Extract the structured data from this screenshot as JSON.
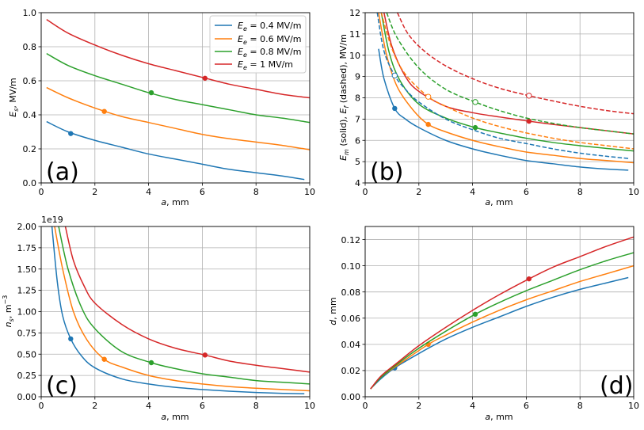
{
  "colors": {
    "blue": "#1f77b4",
    "orange": "#ff7f0e",
    "green": "#2ca02c",
    "red": "#d62728"
  },
  "chart_data": [
    {
      "type": "line",
      "panel_label": "(a)",
      "xlabel": "a, mm",
      "ylabel": "E_s, MV/m",
      "xlim": [
        0,
        10
      ],
      "ylim": [
        0,
        1.0
      ],
      "xticks": [
        "0",
        "2",
        "4",
        "6",
        "8",
        "10"
      ],
      "yticks": [
        "0.0",
        "0.2",
        "0.4",
        "0.6",
        "0.8",
        "1.0"
      ],
      "grid": true,
      "legend_position": "top-right",
      "legend": [
        "E_e = 0.4 MV/m",
        "E_e = 0.6 MV/m",
        "E_e = 0.8 MV/m",
        "E_e = 1 MV/m"
      ],
      "series": [
        {
          "name": "E_e = 0.4 MV/m",
          "color": "blue",
          "x": [
            0.2,
            1,
            2,
            3,
            4,
            5,
            6,
            7,
            8,
            9,
            9.8
          ],
          "y": [
            0.36,
            0.3,
            0.25,
            0.21,
            0.17,
            0.14,
            0.11,
            0.08,
            0.06,
            0.04,
            0.02
          ],
          "marker": [
            1.1,
            0.29
          ]
        },
        {
          "name": "E_e = 0.6 MV/m",
          "color": "orange",
          "x": [
            0.2,
            1,
            2,
            3,
            4,
            5,
            6,
            7,
            8,
            9,
            10
          ],
          "y": [
            0.56,
            0.5,
            0.44,
            0.39,
            0.355,
            0.32,
            0.285,
            0.26,
            0.24,
            0.22,
            0.195
          ],
          "marker": [
            2.35,
            0.42
          ]
        },
        {
          "name": "E_e = 0.8 MV/m",
          "color": "green",
          "x": [
            0.2,
            1,
            2,
            3,
            4,
            5,
            6,
            7,
            8,
            9,
            10
          ],
          "y": [
            0.76,
            0.69,
            0.63,
            0.58,
            0.53,
            0.49,
            0.46,
            0.43,
            0.4,
            0.38,
            0.355
          ],
          "marker": [
            4.1,
            0.53
          ]
        },
        {
          "name": "E_e = 1 MV/m",
          "color": "red",
          "x": [
            0.2,
            1,
            2,
            3,
            4,
            5,
            6,
            7,
            8,
            9,
            10
          ],
          "y": [
            0.96,
            0.88,
            0.81,
            0.75,
            0.7,
            0.66,
            0.62,
            0.58,
            0.55,
            0.52,
            0.5
          ],
          "marker": [
            6.1,
            0.615
          ]
        }
      ]
    },
    {
      "type": "line",
      "panel_label": "(b)",
      "xlabel": "a, mm",
      "ylabel": "E_m (solid), E_f (dashed), MV/m",
      "xlim": [
        0,
        10
      ],
      "ylim": [
        4,
        12
      ],
      "xticks": [
        "0",
        "2",
        "4",
        "6",
        "8",
        "10"
      ],
      "yticks": [
        "4",
        "5",
        "6",
        "7",
        "8",
        "9",
        "10",
        "11",
        "12"
      ],
      "grid": true,
      "series": [
        {
          "name": "E_m, E_e = 0.4 MV/m",
          "color": "blue",
          "style": "solid",
          "x": [
            0.5,
            0.7,
            1.1,
            1.5,
            2,
            3,
            4,
            5,
            6,
            7,
            8,
            9,
            9.8
          ],
          "y": [
            10.3,
            8.9,
            7.5,
            7.0,
            6.6,
            6.0,
            5.6,
            5.3,
            5.05,
            4.9,
            4.75,
            4.65,
            4.6
          ],
          "marker": [
            1.1,
            7.5
          ]
        },
        {
          "name": "E_m, E_e = 0.6 MV/m",
          "color": "orange",
          "style": "solid",
          "x": [
            0.5,
            0.8,
            1.2,
            1.8,
            2.35,
            3,
            4,
            5,
            6,
            7,
            8,
            9,
            10
          ],
          "y": [
            12,
            10.0,
            8.5,
            7.4,
            6.75,
            6.4,
            6.0,
            5.7,
            5.45,
            5.3,
            5.15,
            5.05,
            4.95
          ],
          "marker": [
            2.35,
            6.75
          ]
        },
        {
          "name": "E_m, E_e = 0.8 MV/m",
          "color": "green",
          "style": "solid",
          "x": [
            0.6,
            0.9,
            1.3,
            2,
            3,
            4.1,
            5,
            6,
            7,
            8,
            9,
            10
          ],
          "y": [
            12,
            10.1,
            8.8,
            7.7,
            7.05,
            6.6,
            6.35,
            6.1,
            5.9,
            5.75,
            5.62,
            5.5
          ],
          "marker": [
            4.1,
            6.6
          ]
        },
        {
          "name": "E_m, E_e = 1 MV/m",
          "color": "red",
          "style": "solid",
          "x": [
            0.7,
            1.0,
            1.5,
            2,
            3,
            4,
            5,
            6.1,
            7,
            8,
            9,
            10
          ],
          "y": [
            12,
            10.4,
            9.0,
            8.3,
            7.6,
            7.3,
            7.1,
            6.9,
            6.75,
            6.6,
            6.45,
            6.3
          ],
          "marker": [
            6.1,
            6.9
          ]
        },
        {
          "name": "E_f, E_e = 0.4 MV/m",
          "color": "blue",
          "style": "dashed",
          "x": [
            0.45,
            0.7,
            1.1,
            1.5,
            2,
            3,
            4,
            5,
            6,
            7,
            8,
            9,
            9.8
          ],
          "y": [
            12,
            10.2,
            9.05,
            8.4,
            7.8,
            7.0,
            6.5,
            6.1,
            5.85,
            5.6,
            5.4,
            5.25,
            5.15
          ],
          "marker": [
            1.1,
            9.05
          ]
        },
        {
          "name": "E_f, E_e = 0.6 MV/m",
          "color": "orange",
          "style": "dashed",
          "x": [
            0.6,
            1.0,
            1.5,
            2.35,
            3,
            4,
            5,
            6,
            7,
            8,
            9,
            10
          ],
          "y": [
            12,
            10.3,
            9.1,
            8.05,
            7.6,
            7.05,
            6.65,
            6.35,
            6.1,
            5.9,
            5.75,
            5.6
          ],
          "marker": [
            2.35,
            8.05
          ]
        },
        {
          "name": "E_f, E_e = 0.8 MV/m",
          "color": "green",
          "style": "dashed",
          "x": [
            0.8,
            1.2,
            2,
            3,
            4.1,
            5,
            6,
            7,
            8,
            9,
            10
          ],
          "y": [
            12,
            10.8,
            9.4,
            8.4,
            7.8,
            7.4,
            7.05,
            6.8,
            6.6,
            6.45,
            6.3
          ],
          "marker": [
            4.1,
            7.8
          ]
        },
        {
          "name": "E_f, E_e = 1 MV/m",
          "color": "red",
          "style": "dashed",
          "x": [
            1.2,
            1.6,
            2.2,
            3,
            4,
            5,
            6.1,
            7,
            8,
            9,
            10
          ],
          "y": [
            12,
            11.0,
            10.2,
            9.5,
            8.9,
            8.45,
            8.1,
            7.85,
            7.6,
            7.4,
            7.25
          ],
          "marker": [
            6.1,
            8.1
          ]
        }
      ]
    },
    {
      "type": "line",
      "panel_label": "(c)",
      "xlabel": "a, mm",
      "ylabel": "n_s, m^-3",
      "offset_label": "1e19",
      "xlim": [
        0,
        10
      ],
      "ylim": [
        0,
        2.0
      ],
      "xticks": [
        "0",
        "2",
        "4",
        "6",
        "8",
        "10"
      ],
      "yticks": [
        "0.00",
        "0.25",
        "0.50",
        "0.75",
        "1.00",
        "1.25",
        "1.50",
        "1.75",
        "2.00"
      ],
      "grid": true,
      "series": [
        {
          "name": "E_e = 0.4 MV/m",
          "color": "blue",
          "x": [
            0.4,
            0.6,
            0.8,
            1.1,
            1.5,
            2,
            3,
            4,
            5,
            6,
            7,
            8,
            9,
            9.8
          ],
          "y": [
            2.0,
            1.35,
            0.95,
            0.68,
            0.48,
            0.34,
            0.21,
            0.15,
            0.11,
            0.085,
            0.065,
            0.05,
            0.04,
            0.035
          ],
          "marker": [
            1.1,
            0.68
          ]
        },
        {
          "name": "E_e = 0.6 MV/m",
          "color": "orange",
          "x": [
            0.5,
            0.8,
            1.2,
            1.7,
            2.35,
            3,
            4,
            5,
            6,
            7,
            8,
            9,
            10
          ],
          "y": [
            2.0,
            1.5,
            1.0,
            0.67,
            0.44,
            0.35,
            0.25,
            0.19,
            0.15,
            0.12,
            0.1,
            0.085,
            0.07
          ],
          "marker": [
            2.35,
            0.44
          ]
        },
        {
          "name": "E_e = 0.8 MV/m",
          "color": "green",
          "x": [
            0.65,
            1.0,
            1.5,
            2,
            3,
            4.1,
            5,
            6,
            7,
            8,
            9,
            10
          ],
          "y": [
            2.0,
            1.5,
            1.05,
            0.8,
            0.53,
            0.4,
            0.33,
            0.27,
            0.23,
            0.19,
            0.17,
            0.15
          ],
          "marker": [
            4.1,
            0.4
          ]
        },
        {
          "name": "E_e = 1 MV/m",
          "color": "red",
          "x": [
            0.9,
            1.2,
            1.6,
            2,
            3,
            4,
            5,
            6.1,
            7,
            8,
            9,
            10
          ],
          "y": [
            2.0,
            1.6,
            1.3,
            1.1,
            0.85,
            0.68,
            0.57,
            0.49,
            0.42,
            0.37,
            0.33,
            0.29
          ],
          "marker": [
            6.1,
            0.49
          ]
        }
      ]
    },
    {
      "type": "line",
      "panel_label": "(d)",
      "xlabel": "a, mm",
      "ylabel": "d, mm",
      "xlim": [
        0,
        10
      ],
      "ylim": [
        0,
        0.13
      ],
      "xticks": [
        "0",
        "2",
        "4",
        "6",
        "8",
        "10"
      ],
      "yticks": [
        "0.00",
        "0.02",
        "0.04",
        "0.06",
        "0.08",
        "0.10",
        "0.12"
      ],
      "grid": true,
      "series": [
        {
          "name": "E_e = 0.4 MV/m",
          "color": "blue",
          "x": [
            0.2,
            0.6,
            1.1,
            2,
            3,
            4,
            5,
            6,
            7,
            8,
            9,
            9.8
          ],
          "y": [
            0.006,
            0.014,
            0.022,
            0.033,
            0.044,
            0.053,
            0.061,
            0.069,
            0.076,
            0.082,
            0.087,
            0.091
          ],
          "marker": [
            1.1,
            0.022
          ]
        },
        {
          "name": "E_e = 0.6 MV/m",
          "color": "orange",
          "x": [
            0.2,
            0.6,
            1.2,
            2.35,
            3,
            4,
            5,
            6,
            7,
            8,
            9,
            10
          ],
          "y": [
            0.006,
            0.015,
            0.024,
            0.04,
            0.047,
            0.057,
            0.066,
            0.074,
            0.081,
            0.088,
            0.094,
            0.1
          ],
          "marker": [
            2.35,
            0.04
          ]
        },
        {
          "name": "E_e = 0.8 MV/m",
          "color": "green",
          "x": [
            0.2,
            0.6,
            1.2,
            2,
            3,
            4.1,
            5,
            6,
            7,
            8,
            9,
            10
          ],
          "y": [
            0.006,
            0.015,
            0.025,
            0.037,
            0.05,
            0.063,
            0.072,
            0.081,
            0.089,
            0.097,
            0.104,
            0.11
          ],
          "marker": [
            4.1,
            0.063
          ]
        },
        {
          "name": "E_e = 1 MV/m",
          "color": "red",
          "x": [
            0.2,
            0.6,
            1.2,
            2,
            3,
            4,
            5,
            6.1,
            7,
            8,
            9,
            10
          ],
          "y": [
            0.006,
            0.016,
            0.026,
            0.039,
            0.053,
            0.066,
            0.078,
            0.09,
            0.099,
            0.107,
            0.115,
            0.122
          ],
          "marker": [
            6.1,
            0.09
          ]
        }
      ]
    }
  ]
}
